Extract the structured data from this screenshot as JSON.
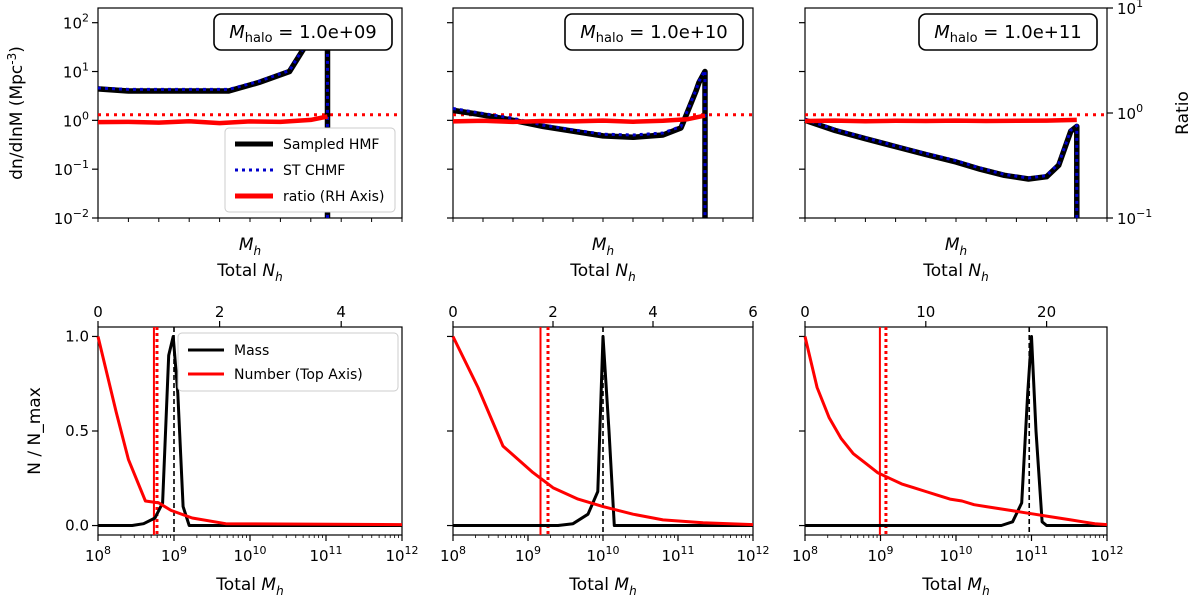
{
  "chart_data": [
    {
      "type": "line",
      "panel": "top-1",
      "yscale": "log",
      "ylim": [
        0.01,
        200
      ],
      "ylabel": "dn/dlnM (Mpc$^-3$)",
      "xlabel": "M_h",
      "annotation": {
        "prefix": "M",
        "sub": "halo",
        "value": " = 1.0e+09"
      },
      "y_ticks": [
        {
          "base": "10",
          "exp": "2",
          "v": 100
        },
        {
          "base": "10",
          "exp": "1",
          "v": 10
        },
        {
          "base": "10",
          "exp": "0",
          "v": 1
        },
        {
          "base": "10",
          "exp": "−1",
          "v": 0.1
        },
        {
          "base": "10",
          "exp": "−2",
          "v": 0.01
        }
      ],
      "series": [
        {
          "name": "Sampled HMF",
          "color": "#000000",
          "x": [
            0,
            0.1,
            0.2,
            0.3,
            0.43,
            0.53,
            0.63,
            0.73,
            0.755,
            0.755
          ],
          "y": [
            4.4,
            4.0,
            4.0,
            4.0,
            4.0,
            6.0,
            10,
            100,
            110,
            0.01
          ]
        },
        {
          "name": "ST CHMF",
          "color": "#0000cc",
          "x": [
            0,
            0.1,
            0.2,
            0.3,
            0.43,
            0.53,
            0.63,
            0.73,
            0.755,
            0.755
          ],
          "y": [
            4.6,
            4.3,
            4.3,
            4.3,
            4.3,
            6.3,
            10.5,
            105,
            115,
            0.01
          ]
        },
        {
          "name": "ratio (RH Axis)",
          "color": "#ff0000",
          "x": [
            0,
            0.1,
            0.2,
            0.3,
            0.4,
            0.5,
            0.6,
            0.7,
            0.755
          ],
          "y": [
            0.92,
            0.93,
            0.9,
            0.96,
            0.88,
            0.95,
            0.93,
            1.02,
            1.2
          ]
        }
      ],
      "reference_line": {
        "value": 1.3,
        "style": "dotted",
        "color": "#ff0000"
      },
      "legend": {
        "position": "lower-right",
        "entries": [
          "Sampled HMF",
          "ST CHMF",
          "ratio (RH Axis)"
        ]
      }
    },
    {
      "type": "line",
      "panel": "top-2",
      "yscale": "log",
      "ylim": [
        0.01,
        200
      ],
      "xlabel": "M_h",
      "annotation": {
        "prefix": "M",
        "sub": "halo",
        "value": " = 1.0e+10"
      },
      "series": [
        {
          "name": "Sampled HMF",
          "color": "#000000",
          "x": [
            0,
            0.08,
            0.2,
            0.3,
            0.4,
            0.5,
            0.6,
            0.7,
            0.76,
            0.81,
            0.82,
            0.84,
            0.84
          ],
          "y": [
            1.6,
            1.35,
            1.0,
            0.75,
            0.6,
            0.48,
            0.45,
            0.5,
            0.7,
            4.0,
            6.0,
            10.0,
            0.01
          ]
        },
        {
          "name": "ST CHMF",
          "color": "#0000cc",
          "x": [
            0,
            0.08,
            0.2,
            0.3,
            0.4,
            0.5,
            0.6,
            0.7,
            0.76,
            0.81,
            0.82,
            0.84,
            0.84
          ],
          "y": [
            1.75,
            1.45,
            1.1,
            0.8,
            0.64,
            0.52,
            0.5,
            0.55,
            0.75,
            4.2,
            6.3,
            10.5,
            0.01
          ]
        },
        {
          "name": "ratio (RH Axis)",
          "color": "#ff0000",
          "x": [
            0,
            0.1,
            0.2,
            0.3,
            0.4,
            0.5,
            0.6,
            0.7,
            0.78,
            0.84
          ],
          "y": [
            0.95,
            0.98,
            0.93,
            0.97,
            0.95,
            0.99,
            0.94,
            0.98,
            1.05,
            1.25
          ]
        }
      ],
      "reference_line": {
        "value": 1.3,
        "style": "dotted",
        "color": "#ff0000"
      }
    },
    {
      "type": "line",
      "panel": "top-3",
      "yscale": "log",
      "ylim": [
        0.01,
        200
      ],
      "xlabel": "M_h",
      "annotation": {
        "prefix": "M",
        "sub": "halo",
        "value": " = 1.0e+11"
      },
      "y2label": "Ratio",
      "y2scale": "log",
      "y2lim": [
        0.1,
        10
      ],
      "y2_ticks": [
        {
          "base": "10",
          "exp": "1",
          "v": 10
        },
        {
          "base": "10",
          "exp": "0",
          "v": 1
        },
        {
          "base": "10",
          "exp": "−1",
          "v": 0.1
        }
      ],
      "series": [
        {
          "name": "Sampled HMF",
          "color": "#000000",
          "x": [
            0,
            0.1,
            0.2,
            0.3,
            0.4,
            0.5,
            0.58,
            0.66,
            0.74,
            0.8,
            0.84,
            0.88,
            0.9,
            0.9
          ],
          "y": [
            1.0,
            0.62,
            0.42,
            0.29,
            0.2,
            0.14,
            0.1,
            0.075,
            0.063,
            0.07,
            0.12,
            0.6,
            0.75,
            0.01
          ]
        },
        {
          "name": "ST CHMF",
          "color": "#0000cc",
          "x": [
            0,
            0.1,
            0.2,
            0.3,
            0.4,
            0.5,
            0.58,
            0.66,
            0.74,
            0.8,
            0.84,
            0.88,
            0.9,
            0.9
          ],
          "y": [
            1.05,
            0.65,
            0.44,
            0.3,
            0.21,
            0.15,
            0.105,
            0.078,
            0.066,
            0.074,
            0.13,
            0.63,
            0.78,
            0.01
          ]
        },
        {
          "name": "ratio (RH Axis)",
          "color": "#ff0000",
          "x": [
            0,
            0.1,
            0.2,
            0.3,
            0.4,
            0.5,
            0.6,
            0.7,
            0.8,
            0.9
          ],
          "y": [
            0.97,
            0.99,
            0.96,
            0.98,
            0.97,
            0.99,
            0.97,
            0.98,
            0.99,
            1.02
          ]
        }
      ],
      "reference_line": {
        "value": 1.3,
        "style": "dotted",
        "color": "#ff0000"
      }
    },
    {
      "type": "line",
      "panel": "bottom-1",
      "xscale": "log",
      "xlim": [
        8,
        12
      ],
      "ylim": [
        -0.05,
        1.05
      ],
      "ylabel": "N / N_max",
      "xlabel": "Total M_h",
      "top_xlabel": "Total N_h",
      "x_ticks": [
        {
          "base": "10",
          "exp": "8",
          "v": 8
        },
        {
          "base": "10",
          "exp": "9",
          "v": 9
        },
        {
          "base": "10",
          "exp": "10",
          "v": 10
        },
        {
          "base": "10",
          "exp": "11",
          "v": 11
        },
        {
          "base": "10",
          "exp": "12",
          "v": 12
        }
      ],
      "y_ticks": [
        {
          "label": "0.0",
          "v": 0
        },
        {
          "label": "0.5",
          "v": 0.5
        },
        {
          "label": "1.0",
          "v": 1
        }
      ],
      "top_xlim": [
        0,
        5
      ],
      "top_ticks": [
        {
          "label": "0",
          "v": 0
        },
        {
          "label": "2",
          "v": 2
        },
        {
          "label": "4",
          "v": 4
        }
      ],
      "series": [
        {
          "name": "Mass",
          "color": "#000000",
          "axis": "bottom",
          "x": [
            8,
            8.45,
            8.6,
            8.75,
            8.85,
            8.93,
            8.99,
            9.05,
            9.12,
            9.2,
            9.5,
            12
          ],
          "y": [
            0,
            0,
            0.01,
            0.04,
            0.12,
            0.9,
            1.0,
            0.7,
            0.1,
            0,
            0,
            0
          ]
        },
        {
          "name": "Number (Top Axis)",
          "color": "#ff0000",
          "axis": "top",
          "x": [
            0,
            0.3,
            0.5,
            0.78,
            1.0,
            1.2,
            1.55,
            2.1,
            5
          ],
          "y": [
            1.0,
            0.6,
            0.35,
            0.13,
            0.12,
            0.08,
            0.04,
            0.01,
            0.005
          ]
        }
      ],
      "markers": {
        "mass_dashed": 9.0,
        "number_solid": 0.92,
        "number_dotted": 0.97
      },
      "legend": {
        "position": "upper-right",
        "entries": [
          "Mass",
          "Number (Top Axis)"
        ]
      }
    },
    {
      "type": "line",
      "panel": "bottom-2",
      "xscale": "log",
      "xlim": [
        8,
        12
      ],
      "ylim": [
        -0.05,
        1.05
      ],
      "xlabel": "Total M_h",
      "top_xlabel": "Total N_h",
      "top_xlim": [
        0,
        6
      ],
      "top_ticks": [
        {
          "label": "0",
          "v": 0
        },
        {
          "label": "2",
          "v": 2
        },
        {
          "label": "4",
          "v": 4
        },
        {
          "label": "6",
          "v": 6
        }
      ],
      "series": [
        {
          "name": "Mass",
          "color": "#000000",
          "axis": "bottom",
          "x": [
            8,
            9.4,
            9.6,
            9.8,
            9.93,
            10.0,
            10.08,
            10.15,
            10.3,
            12
          ],
          "y": [
            0,
            0,
            0.01,
            0.06,
            0.18,
            1.0,
            0.5,
            0,
            0,
            0
          ]
        },
        {
          "name": "Number (Top Axis)",
          "color": "#ff0000",
          "axis": "top",
          "x": [
            0,
            0.5,
            1.0,
            1.6,
            2.0,
            2.5,
            3.0,
            3.6,
            4.2,
            5.0,
            6.0
          ],
          "y": [
            1.0,
            0.73,
            0.42,
            0.28,
            0.2,
            0.14,
            0.1,
            0.06,
            0.03,
            0.015,
            0.005
          ]
        }
      ],
      "markers": {
        "mass_dashed": 10.0,
        "number_solid": 1.75,
        "number_dotted": 1.9
      }
    },
    {
      "type": "line",
      "panel": "bottom-3",
      "xscale": "log",
      "xlim": [
        8,
        12
      ],
      "ylim": [
        -0.05,
        1.05
      ],
      "xlabel": "Total M_h",
      "top_xlabel": "Total N_h",
      "top_xlim": [
        0,
        25
      ],
      "top_ticks": [
        {
          "label": "0",
          "v": 0
        },
        {
          "label": "10",
          "v": 10
        },
        {
          "label": "20",
          "v": 20
        }
      ],
      "series": [
        {
          "name": "Mass",
          "color": "#000000",
          "axis": "bottom",
          "x": [
            8,
            10.6,
            10.75,
            10.87,
            10.95,
            11.0,
            11.06,
            11.14,
            11.2,
            12
          ],
          "y": [
            0,
            0,
            0.02,
            0.12,
            0.7,
            1.0,
            0.5,
            0.02,
            0,
            0
          ]
        },
        {
          "name": "Number (Top Axis)",
          "color": "#ff0000",
          "axis": "top",
          "x": [
            0,
            1,
            2,
            3,
            4,
            5,
            6,
            7,
            8,
            9,
            10,
            11,
            12,
            13,
            14,
            15,
            16,
            17,
            18,
            19,
            20,
            21,
            22,
            23,
            24,
            25
          ],
          "y": [
            1.0,
            0.73,
            0.57,
            0.46,
            0.38,
            0.33,
            0.28,
            0.25,
            0.22,
            0.2,
            0.18,
            0.16,
            0.14,
            0.13,
            0.11,
            0.1,
            0.09,
            0.08,
            0.07,
            0.06,
            0.05,
            0.04,
            0.03,
            0.02,
            0.01,
            0.005
          ]
        }
      ],
      "markers": {
        "mass_dashed": 10.97,
        "number_solid": 6.2,
        "number_dotted": 6.7
      }
    }
  ]
}
